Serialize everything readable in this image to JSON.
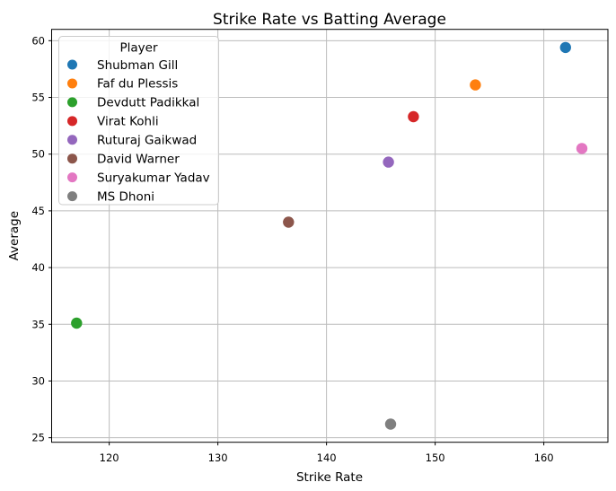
{
  "figure": {
    "background": "#ffffff"
  },
  "chart_data": {
    "type": "scatter",
    "title": "Strike Rate vs Batting Average",
    "xlabel": "Strike Rate",
    "ylabel": "Average",
    "legend_title": "Player",
    "legend_position": "upper-left",
    "grid": true,
    "xlim": [
      114.7,
      165.9
    ],
    "ylim": [
      24.6,
      61.0
    ],
    "xticks": [
      120,
      130,
      140,
      150,
      160
    ],
    "yticks": [
      25,
      30,
      35,
      40,
      45,
      50,
      55,
      60
    ],
    "series": [
      {
        "name": "Shubman Gill",
        "x": 162.0,
        "y": 59.4,
        "color": "#1f77b4"
      },
      {
        "name": "Faf du Plessis",
        "x": 153.7,
        "y": 56.1,
        "color": "#ff7f0e"
      },
      {
        "name": "Devdutt Padikkal",
        "x": 117.0,
        "y": 35.1,
        "color": "#2ca02c"
      },
      {
        "name": "Virat Kohli",
        "x": 148.0,
        "y": 53.3,
        "color": "#d62728"
      },
      {
        "name": "Ruturaj Gaikwad",
        "x": 145.7,
        "y": 49.3,
        "color": "#9467bd"
      },
      {
        "name": "David Warner",
        "x": 136.5,
        "y": 44.0,
        "color": "#8c564b"
      },
      {
        "name": "Suryakumar Yadav",
        "x": 163.5,
        "y": 50.5,
        "color": "#e377c2"
      },
      {
        "name": "MS Dhoni",
        "x": 145.9,
        "y": 26.2,
        "color": "#7f7f7f"
      }
    ],
    "styles": {
      "grid_color": "#bcbcbc",
      "spine_color": "#000000",
      "text_color": "#000000",
      "legend_border_color": "#cccccc",
      "marker_radius": 6.2,
      "legend_marker_radius": 5.5
    }
  }
}
